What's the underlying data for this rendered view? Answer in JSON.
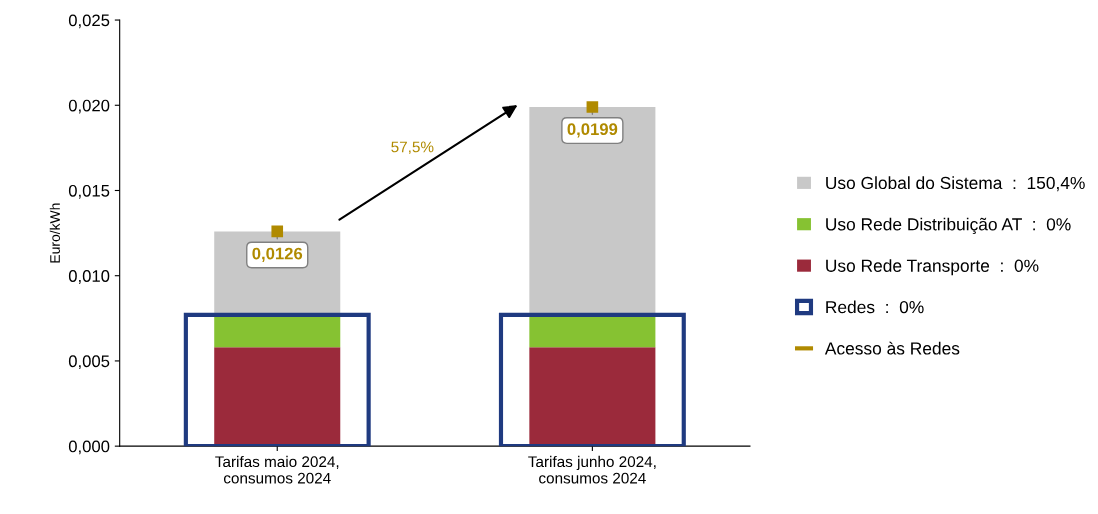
{
  "chart_data": {
    "type": "bar",
    "ylabel": "Euro/kWh",
    "categories": [
      "Tarifas maio 2024,\nconsumos 2024",
      "Tarifas junho 2024,\nconsumos 2024"
    ],
    "series": [
      {
        "name": "Uso Rede Transporte  :  0%",
        "color": "#9b2a3b",
        "values": [
          0.0058,
          0.0058
        ],
        "base": [
          0,
          0
        ]
      },
      {
        "name": "Uso Rede Distribuição AT  :  0%",
        "color": "#86c232",
        "values": [
          0.0019,
          0.0019
        ],
        "base": [
          0.0058,
          0.0058
        ]
      },
      {
        "name": "Uso Global do Sistema  :  150,4%",
        "color": "#c8c8c8",
        "values": [
          0.0049,
          0.0122
        ],
        "base": [
          0.0077,
          0.0077
        ]
      },
      {
        "name": "Redes  :  0%",
        "color": "#1f3a80",
        "values": [
          0.0077,
          0.0077
        ],
        "base": [
          0,
          0
        ],
        "line_style": "solid"
      },
      {
        "name": "Acesso às Redes",
        "color": "#b08a00",
        "type": "scatter",
        "marker": "square",
        "values": [
          0.0126,
          0.0199
        ],
        "value_labels": [
          "0,0126",
          "0,0199"
        ]
      }
    ],
    "ylim": [
      0,
      0.025
    ],
    "yticks": [
      {
        "value": 0,
        "label": "0,000"
      },
      {
        "value": 0.005,
        "label": "0,005"
      },
      {
        "value": 0.01,
        "label": "0,010"
      },
      {
        "value": 0.015,
        "label": "0,015"
      },
      {
        "value": 0.02,
        "label": "0,020"
      },
      {
        "value": 0.025,
        "label": "0,025"
      }
    ],
    "annotations": [
      "57,5%"
    ],
    "grid": false,
    "legend": "right"
  }
}
